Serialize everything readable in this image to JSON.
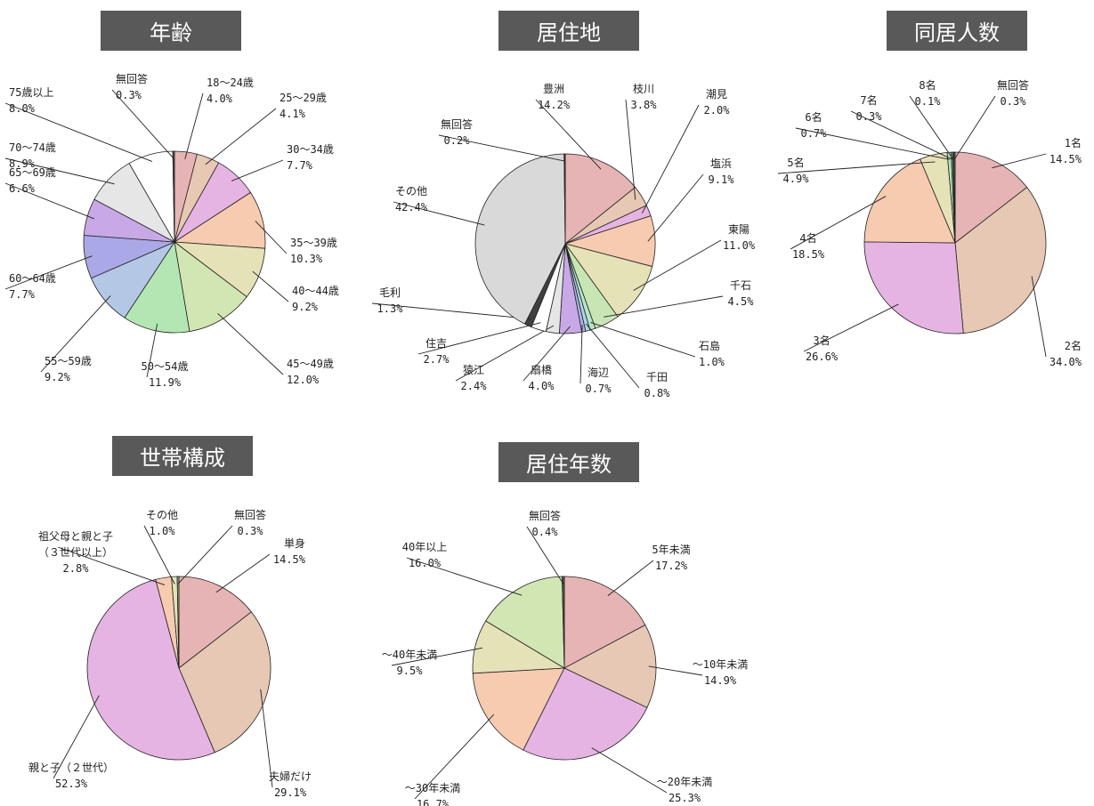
{
  "chart_data": [
    {
      "type": "pie",
      "title": "年齢",
      "slices": [
        {
          "label": "18〜24歳",
          "value": 4.0,
          "value_label": "4.0%",
          "color": "#e6b4b4"
        },
        {
          "label": "25〜29歳",
          "value": 4.1,
          "value_label": "4.1%",
          "color": "#e6c8b4"
        },
        {
          "label": "30〜34歳",
          "value": 7.7,
          "value_label": "7.7%",
          "color": "#e6b4e2"
        },
        {
          "label": "35〜39歳",
          "value": 10.3,
          "value_label": "10.3%",
          "color": "#f6cbb0"
        },
        {
          "label": "40〜44歳",
          "value": 9.2,
          "value_label": "9.2%",
          "color": "#e6e2b8"
        },
        {
          "label": "45〜49歳",
          "value": 12.0,
          "value_label": "12.0%",
          "color": "#d2e6b4"
        },
        {
          "label": "50〜54歳",
          "value": 11.9,
          "value_label": "11.9%",
          "color": "#b4e6b4"
        },
        {
          "label": "55〜59歳",
          "value": 9.2,
          "value_label": "9.2%",
          "color": "#b4c8e6"
        },
        {
          "label": "60〜64歳",
          "value": 7.7,
          "value_label": "7.7%",
          "color": "#aaa8e6"
        },
        {
          "label": "65〜69歳",
          "value": 6.6,
          "value_label": "6.6%",
          "color": "#c8a8e6"
        },
        {
          "label": "70〜74歳",
          "value": 8.9,
          "value_label": "8.9%",
          "color": "#e6e6e6"
        },
        {
          "label": "75歳以上",
          "value": 8.0,
          "value_label": "8.0%",
          "color": "#ffffff"
        },
        {
          "label": "無回答",
          "value": 0.3,
          "value_label": "0.3%",
          "color": "#555555"
        }
      ]
    },
    {
      "type": "pie",
      "title": "居住地",
      "slices": [
        {
          "label": "豊洲",
          "value": 14.2,
          "value_label": "14.2%",
          "color": "#e6b4b4"
        },
        {
          "label": "枝川",
          "value": 3.8,
          "value_label": "3.8%",
          "color": "#e6c8b4"
        },
        {
          "label": "潮見",
          "value": 2.0,
          "value_label": "2.0%",
          "color": "#e6b4e2"
        },
        {
          "label": "塩浜",
          "value": 9.1,
          "value_label": "9.1%",
          "color": "#f6cbb0"
        },
        {
          "label": "東陽",
          "value": 11.0,
          "value_label": "11.0%",
          "color": "#e6e2b8"
        },
        {
          "label": "千石",
          "value": 4.5,
          "value_label": "4.5%",
          "color": "#c8e6b4"
        },
        {
          "label": "石島",
          "value": 1.0,
          "value_label": "1.0%",
          "color": "#b4e6c8"
        },
        {
          "label": "千田",
          "value": 0.8,
          "value_label": "0.8%",
          "color": "#b4d2e6"
        },
        {
          "label": "海辺",
          "value": 0.7,
          "value_label": "0.7%",
          "color": "#aab4e6"
        },
        {
          "label": "扇橋",
          "value": 4.0,
          "value_label": "4.0%",
          "color": "#c8a8e6"
        },
        {
          "label": "猿江",
          "value": 2.4,
          "value_label": "2.4%",
          "color": "#e6e6e6"
        },
        {
          "label": "住吉",
          "value": 2.7,
          "value_label": "2.7%",
          "color": "#ffffff"
        },
        {
          "label": "毛利",
          "value": 1.3,
          "value_label": "1.3%",
          "color": "#404040"
        },
        {
          "label": "その他",
          "value": 42.4,
          "value_label": "42.4%",
          "color": "#d9d9d9"
        },
        {
          "label": "無回答",
          "value": 0.2,
          "value_label": "0.2%",
          "color": "#333333"
        }
      ]
    },
    {
      "type": "pie",
      "title": "同居人数",
      "slices": [
        {
          "label": "1名",
          "value": 14.5,
          "value_label": "14.5%",
          "color": "#e6b4b4"
        },
        {
          "label": "2名",
          "value": 34.0,
          "value_label": "34.0%",
          "color": "#e6c8b4"
        },
        {
          "label": "3名",
          "value": 26.6,
          "value_label": "26.6%",
          "color": "#e6b4e2"
        },
        {
          "label": "4名",
          "value": 18.5,
          "value_label": "18.5%",
          "color": "#f6cbb0"
        },
        {
          "label": "5名",
          "value": 4.9,
          "value_label": "4.9%",
          "color": "#e6e2b8"
        },
        {
          "label": "6名",
          "value": 0.7,
          "value_label": "0.7%",
          "color": "#b4e6b4"
        },
        {
          "label": "7名",
          "value": 0.3,
          "value_label": "0.3%",
          "color": "#8cb4a0"
        },
        {
          "label": "8名",
          "value": 0.1,
          "value_label": "0.1%",
          "color": "#5a7a9a"
        },
        {
          "label": "無回答",
          "value": 0.3,
          "value_label": "0.3%",
          "color": "#555555"
        }
      ]
    },
    {
      "type": "pie",
      "title": "世帯構成",
      "slices": [
        {
          "label": "単身",
          "value": 14.5,
          "value_label": "14.5%",
          "color": "#e6b4b4"
        },
        {
          "label": "夫婦だけ",
          "value": 29.1,
          "value_label": "29.1%",
          "color": "#e6c8b4"
        },
        {
          "label": "親と子（２世代）",
          "value": 52.3,
          "value_label": "52.3%",
          "color": "#e6b4e2"
        },
        {
          "label": "祖父母と親と子",
          "label2": "（３世代以上）",
          "value": 2.8,
          "value_label": "2.8%",
          "color": "#f6cbb0"
        },
        {
          "label": "その他",
          "value": 1.0,
          "value_label": "1.0%",
          "color": "#e6e2b8"
        },
        {
          "label": "無回答",
          "value": 0.3,
          "value_label": "0.3%",
          "color": "#8cb48c"
        }
      ]
    },
    {
      "type": "pie",
      "title": "居住年数",
      "slices": [
        {
          "label": "5年未満",
          "value": 17.2,
          "value_label": "17.2%",
          "color": "#e6b4b4"
        },
        {
          "label": "〜10年未満",
          "value": 14.9,
          "value_label": "14.9%",
          "color": "#e6c8b4"
        },
        {
          "label": "〜20年未満",
          "value": 25.3,
          "value_label": "25.3%",
          "color": "#e6b4e2"
        },
        {
          "label": "〜30年未満",
          "value": 16.7,
          "value_label": "16.7%",
          "color": "#f6cbb0"
        },
        {
          "label": "〜40年未満",
          "value": 9.5,
          "value_label": "9.5%",
          "color": "#e6e2b8"
        },
        {
          "label": "40年以上",
          "value": 16.0,
          "value_label": "16.0%",
          "color": "#d2e6b4"
        },
        {
          "label": "無回答",
          "value": 0.4,
          "value_label": "0.4%",
          "color": "#555555"
        }
      ]
    }
  ]
}
